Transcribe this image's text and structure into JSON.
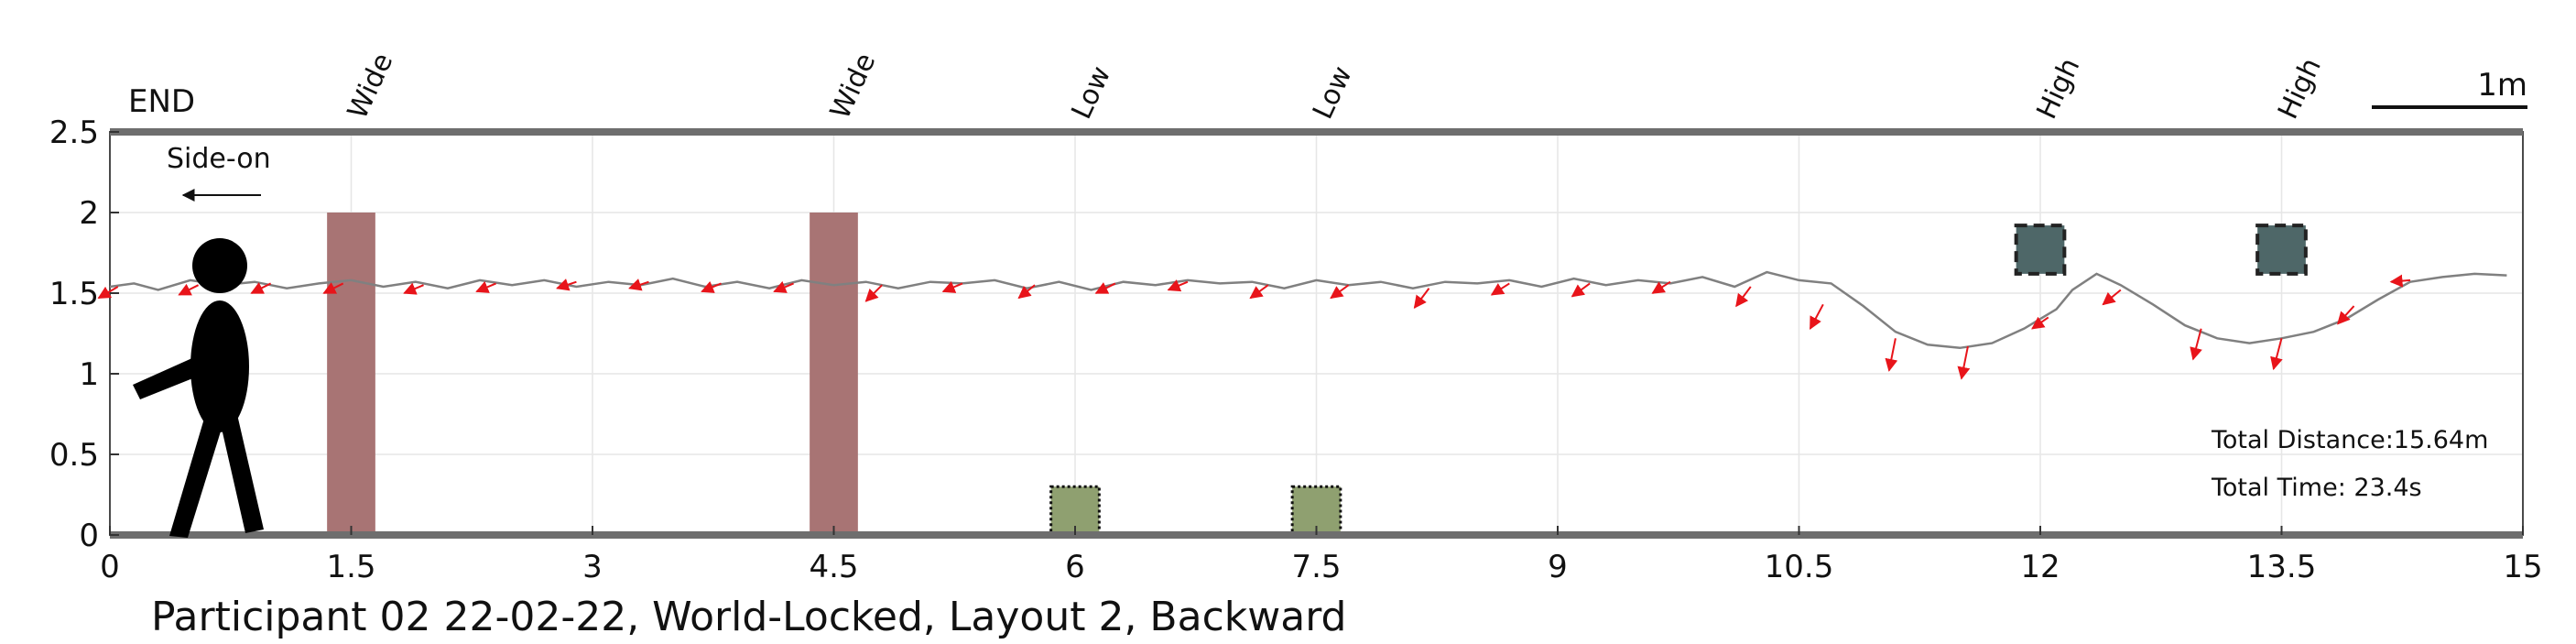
{
  "chart_data": {
    "type": "line",
    "title": "Participant 02 22-02-22, World-Locked, Layout 2, Backward",
    "xlabel": "",
    "ylabel": "",
    "xlim": [
      0,
      15
    ],
    "ylim": [
      0,
      2.5
    ],
    "xticks": [
      {
        "v": 0,
        "label": "0"
      },
      {
        "v": 1.5,
        "label": "1.5"
      },
      {
        "v": 3,
        "label": "3"
      },
      {
        "v": 4.5,
        "label": "4.5"
      },
      {
        "v": 6,
        "label": "6"
      },
      {
        "v": 7.5,
        "label": "7.5"
      },
      {
        "v": 9,
        "label": "9"
      },
      {
        "v": 10.5,
        "label": "10.5"
      },
      {
        "v": 12,
        "label": "12"
      },
      {
        "v": 13.5,
        "label": "13.5"
      },
      {
        "v": 15,
        "label": "15"
      }
    ],
    "yticks": [
      {
        "v": 0,
        "label": "0"
      },
      {
        "v": 0.5,
        "label": "0.5"
      },
      {
        "v": 1,
        "label": "1"
      },
      {
        "v": 1.5,
        "label": "1.5"
      },
      {
        "v": 2,
        "label": "2"
      },
      {
        "v": 2.5,
        "label": "2.5"
      }
    ],
    "grid": true,
    "end_label": "END",
    "direction_label": "Side-on",
    "scale_bar_label": "1m",
    "total_distance": "Total Distance:15.64m",
    "total_time": "Total Time: 23.4s",
    "obstacles": [
      {
        "label": "Wide",
        "kind": "wide",
        "x": 1.5,
        "width": 0.3,
        "y0": 0,
        "y1": 2,
        "color": "#a87474"
      },
      {
        "label": "Wide",
        "kind": "wide",
        "x": 4.5,
        "width": 0.3,
        "y0": 0,
        "y1": 2,
        "color": "#a87474"
      },
      {
        "label": "Low",
        "kind": "low",
        "x": 6.0,
        "width": 0.3,
        "y0": 0,
        "y1": 0.3,
        "color": "#8fa070"
      },
      {
        "label": "Low",
        "kind": "low",
        "x": 7.5,
        "width": 0.3,
        "y0": 0,
        "y1": 0.3,
        "color": "#8fa070"
      },
      {
        "label": "High",
        "kind": "high",
        "x": 12.0,
        "width": 0.3,
        "y0": 1.62,
        "y1": 1.92,
        "color": "#4e6768"
      },
      {
        "label": "High",
        "kind": "high",
        "x": 13.5,
        "width": 0.3,
        "y0": 1.62,
        "y1": 1.92,
        "color": "#4e6768"
      }
    ],
    "series": [
      {
        "type": "line",
        "color": "#808080",
        "x": [
          0.0,
          0.15,
          0.3,
          0.5,
          0.7,
          0.9,
          1.1,
          1.3,
          1.5,
          1.7,
          1.9,
          2.1,
          2.3,
          2.5,
          2.7,
          2.9,
          3.1,
          3.3,
          3.5,
          3.7,
          3.9,
          4.1,
          4.3,
          4.5,
          4.7,
          4.9,
          5.1,
          5.3,
          5.5,
          5.7,
          5.9,
          6.1,
          6.3,
          6.5,
          6.7,
          6.9,
          7.1,
          7.3,
          7.5,
          7.7,
          7.9,
          8.1,
          8.3,
          8.5,
          8.7,
          8.9,
          9.1,
          9.3,
          9.5,
          9.7,
          9.9,
          10.1,
          10.3,
          10.5,
          10.7,
          10.9,
          11.1,
          11.3,
          11.5,
          11.7,
          11.9,
          12.1,
          12.2,
          12.35,
          12.5,
          12.7,
          12.9,
          13.1,
          13.3,
          13.5,
          13.7,
          13.9,
          14.1,
          14.3,
          14.5,
          14.7,
          14.9
        ],
        "y": [
          1.54,
          1.56,
          1.52,
          1.58,
          1.55,
          1.57,
          1.53,
          1.56,
          1.58,
          1.54,
          1.57,
          1.53,
          1.58,
          1.55,
          1.58,
          1.54,
          1.57,
          1.55,
          1.59,
          1.54,
          1.57,
          1.53,
          1.58,
          1.55,
          1.57,
          1.53,
          1.57,
          1.56,
          1.58,
          1.53,
          1.57,
          1.52,
          1.57,
          1.55,
          1.58,
          1.56,
          1.57,
          1.53,
          1.58,
          1.55,
          1.57,
          1.53,
          1.57,
          1.56,
          1.58,
          1.54,
          1.59,
          1.55,
          1.58,
          1.56,
          1.6,
          1.54,
          1.63,
          1.58,
          1.56,
          1.42,
          1.26,
          1.18,
          1.16,
          1.19,
          1.28,
          1.4,
          1.52,
          1.62,
          1.55,
          1.43,
          1.3,
          1.22,
          1.19,
          1.22,
          1.26,
          1.34,
          1.46,
          1.57,
          1.6,
          1.62,
          1.61
        ]
      }
    ],
    "arrows": {
      "color": "#e8141a",
      "points": [
        [
          0.05,
          1.54,
          -0.12,
          -0.07
        ],
        [
          0.55,
          1.55,
          -0.12,
          -0.06
        ],
        [
          1.0,
          1.56,
          -0.12,
          -0.06
        ],
        [
          1.45,
          1.56,
          -0.12,
          -0.06
        ],
        [
          1.95,
          1.55,
          -0.12,
          -0.05
        ],
        [
          2.4,
          1.56,
          -0.12,
          -0.05
        ],
        [
          2.9,
          1.57,
          -0.12,
          -0.04
        ],
        [
          3.35,
          1.57,
          -0.12,
          -0.04
        ],
        [
          3.8,
          1.56,
          -0.12,
          -0.05
        ],
        [
          4.25,
          1.56,
          -0.12,
          -0.05
        ],
        [
          4.8,
          1.55,
          -0.1,
          -0.1
        ],
        [
          5.3,
          1.56,
          -0.12,
          -0.05
        ],
        [
          5.75,
          1.55,
          -0.1,
          -0.08
        ],
        [
          6.25,
          1.56,
          -0.12,
          -0.06
        ],
        [
          6.7,
          1.57,
          -0.12,
          -0.05
        ],
        [
          7.2,
          1.55,
          -0.11,
          -0.08
        ],
        [
          7.7,
          1.55,
          -0.11,
          -0.08
        ],
        [
          8.2,
          1.53,
          -0.09,
          -0.12
        ],
        [
          8.7,
          1.56,
          -0.11,
          -0.07
        ],
        [
          9.2,
          1.56,
          -0.11,
          -0.08
        ],
        [
          9.7,
          1.57,
          -0.11,
          -0.07
        ],
        [
          10.2,
          1.54,
          -0.09,
          -0.12
        ],
        [
          10.65,
          1.43,
          -0.08,
          -0.15
        ],
        [
          11.1,
          1.22,
          -0.04,
          -0.2
        ],
        [
          11.55,
          1.17,
          -0.04,
          -0.2
        ],
        [
          12.05,
          1.35,
          -0.1,
          -0.07
        ],
        [
          12.5,
          1.52,
          -0.11,
          -0.09
        ],
        [
          13.0,
          1.28,
          -0.05,
          -0.19
        ],
        [
          13.5,
          1.22,
          -0.05,
          -0.19
        ],
        [
          13.95,
          1.42,
          -0.1,
          -0.11
        ],
        [
          14.3,
          1.58,
          -0.12,
          -0.01
        ]
      ]
    }
  }
}
